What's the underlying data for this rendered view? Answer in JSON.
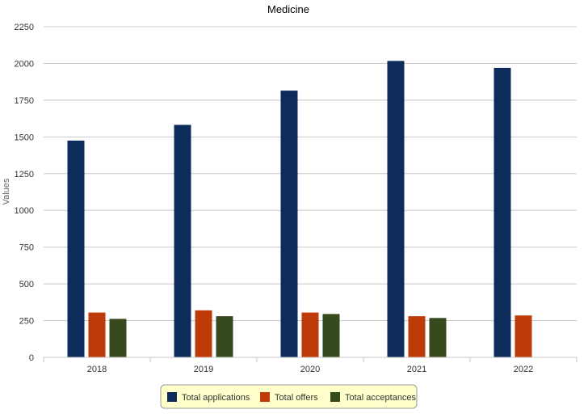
{
  "chart_data": {
    "type": "bar",
    "title": "Medicine",
    "xlabel": "",
    "ylabel": "Values",
    "categories": [
      "2018",
      "2019",
      "2020",
      "2021",
      "2022"
    ],
    "series": [
      {
        "name": "Total applications",
        "color": "#0d2c5c",
        "values": [
          1475,
          1582,
          1815,
          2017,
          1970
        ]
      },
      {
        "name": "Total offers",
        "color": "#be3a08",
        "values": [
          305,
          320,
          305,
          280,
          285
        ]
      },
      {
        "name": "Total acceptances",
        "color": "#364a1e",
        "values": [
          262,
          280,
          295,
          268,
          null
        ]
      }
    ],
    "ylim": [
      0,
      2250
    ],
    "yticks": [
      0,
      250,
      500,
      750,
      1000,
      1250,
      1500,
      1750,
      2000,
      2250
    ],
    "grid": true,
    "legend_position": "bottom"
  }
}
